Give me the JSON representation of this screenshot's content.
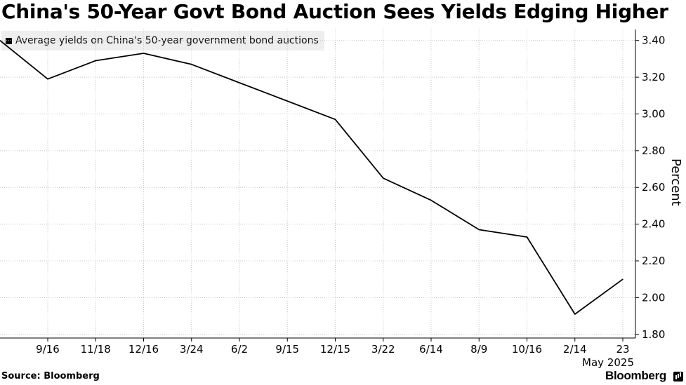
{
  "title": "China's 50-Year Govt Bond Auction Sees Yields Edging Higher",
  "legend_label": "Average yields on China's 50-year government bond auctions",
  "source": "Source: Bloomberg",
  "brand": "Bloomberg",
  "chart_data": {
    "type": "line",
    "title": "China's 50-Year Govt Bond Auction Sees Yields Edging Higher",
    "ylabel": "Percent",
    "xlabel": "",
    "x_tick_labels": [
      "9/16",
      "11/18",
      "12/16",
      "3/24",
      "6/2",
      "9/15",
      "12/15",
      "3/22",
      "6/14",
      "8/9",
      "10/16",
      "2/14",
      "23"
    ],
    "x_sublabel": "May 2025",
    "ylim": [
      1.78,
      3.46
    ],
    "y_ticks": [
      1.8,
      2.0,
      2.2,
      2.4,
      2.6,
      2.8,
      3.0,
      3.2,
      3.4
    ],
    "y_tick_labels": [
      "1.80",
      "2.00",
      "2.20",
      "2.40",
      "2.60",
      "2.80",
      "3.00",
      "3.20",
      "3.40"
    ],
    "grid": true,
    "axis_side": "right",
    "legend_position": "top-left",
    "series": [
      {
        "name": "Average yields on China's 50-year government bond auctions",
        "color": "#000000",
        "leading_value": 3.4,
        "values": [
          3.19,
          3.29,
          3.33,
          3.27,
          3.17,
          3.07,
          2.97,
          2.65,
          2.53,
          2.37,
          2.33,
          1.91,
          2.1
        ]
      }
    ]
  }
}
